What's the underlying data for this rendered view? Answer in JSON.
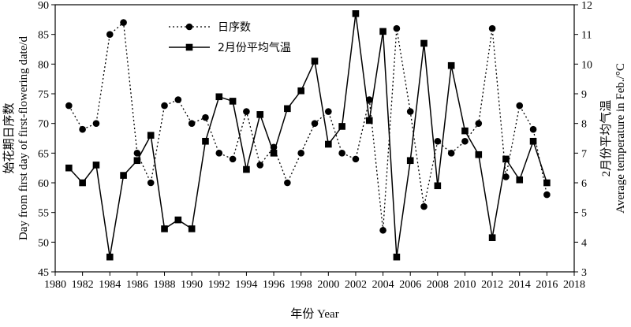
{
  "chart_data": {
    "type": "line",
    "xlabel": "年份 Year",
    "ylabel_left": "始花期日序数\nDay from first day of first-flowering date/d",
    "ylabel_right": "2月份平均气温\nAverage temperature in Feb./°C",
    "xlim": [
      1980,
      2018
    ],
    "x_ticks": [
      1980,
      1982,
      1984,
      1986,
      1988,
      1990,
      1992,
      1994,
      1996,
      1998,
      2000,
      2002,
      2004,
      2006,
      2008,
      2010,
      2012,
      2014,
      2016,
      2018
    ],
    "ylim_left": [
      45,
      90
    ],
    "y_ticks_left": [
      45,
      50,
      55,
      60,
      65,
      70,
      75,
      80,
      85,
      90
    ],
    "ylim_right": [
      3,
      12
    ],
    "y_ticks_right": [
      3,
      4,
      5,
      6,
      7,
      8,
      9,
      10,
      11,
      12
    ],
    "legend_position": "top-left",
    "series": [
      {
        "name": "日序数",
        "axis": "left",
        "marker": "circle",
        "line_style": "dotted",
        "x": [
          1981,
          1982,
          1983,
          1984,
          1985,
          1986,
          1987,
          1988,
          1989,
          1990,
          1991,
          1992,
          1993,
          1994,
          1995,
          1996,
          1997,
          1998,
          1999,
          2000,
          2001,
          2002,
          2003,
          2004,
          2005,
          2006,
          2007,
          2008,
          2009,
          2010,
          2011,
          2012,
          2013,
          2014,
          2015,
          2016
        ],
        "values": [
          73,
          69,
          70,
          85,
          87,
          65,
          60,
          73,
          74,
          70,
          71,
          65,
          64,
          72,
          63,
          66,
          60,
          65,
          70,
          72,
          65,
          64,
          74,
          52,
          86,
          72,
          56,
          67,
          65,
          67,
          70,
          86,
          61,
          73,
          69,
          58
        ]
      },
      {
        "name": "2月份平均气温",
        "axis": "right",
        "marker": "square",
        "line_style": "solid",
        "x": [
          1981,
          1982,
          1983,
          1984,
          1985,
          1986,
          1987,
          1988,
          1989,
          1990,
          1991,
          1992,
          1993,
          1994,
          1995,
          1996,
          1997,
          1998,
          1999,
          2000,
          2001,
          2002,
          2003,
          2004,
          2005,
          2006,
          2007,
          2008,
          2009,
          2010,
          2011,
          2012,
          2013,
          2014,
          2015,
          2016
        ],
        "values": [
          6.5,
          6.0,
          6.6,
          3.5,
          6.25,
          6.75,
          7.6,
          4.45,
          4.75,
          4.45,
          7.4,
          8.9,
          8.75,
          6.45,
          8.3,
          7.0,
          8.5,
          9.1,
          10.1,
          7.3,
          7.9,
          11.7,
          8.1,
          11.1,
          3.5,
          6.75,
          10.7,
          5.9,
          9.95,
          7.75,
          6.95,
          4.15,
          6.8,
          6.1,
          7.4,
          6.0
        ]
      }
    ]
  },
  "colors": {
    "line": "#000000",
    "marker": "#000000",
    "background": "#ffffff"
  }
}
